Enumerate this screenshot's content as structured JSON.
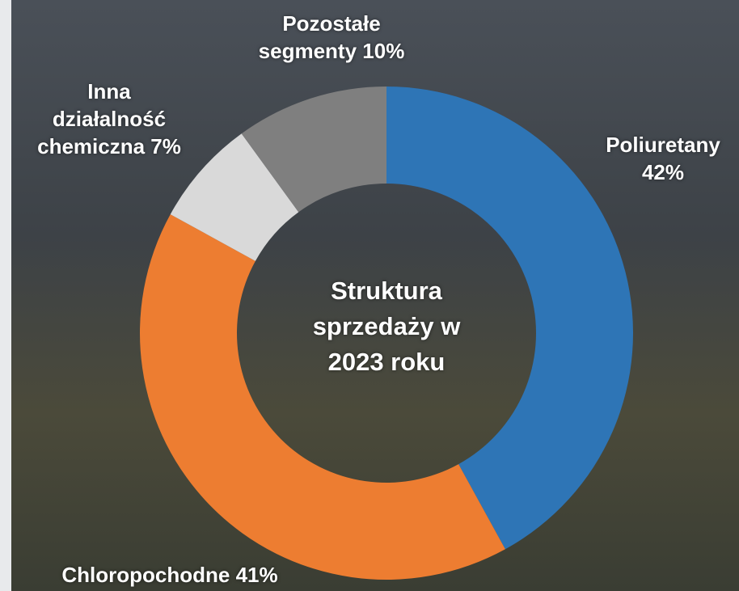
{
  "chart_data": {
    "type": "donut",
    "title": "Struktura sprzedaży w 2023 roku",
    "categories": [
      "Poliuretany",
      "Chloropochodne",
      "Inna działalność chemiczna",
      "Pozostałe segmenty"
    ],
    "values": [
      42,
      41,
      7,
      10
    ],
    "value_labels": [
      "42%",
      "41%",
      "7%",
      "10%"
    ],
    "colors": [
      "#2e75b6",
      "#ed7d31",
      "#d9d9d9",
      "#7f7f7f"
    ]
  }
}
